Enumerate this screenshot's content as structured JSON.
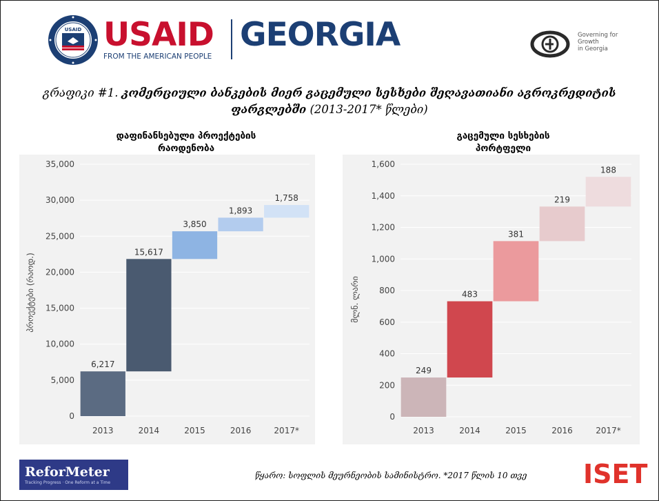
{
  "header": {
    "usaid": "USAID",
    "georgia": "GEORGIA",
    "tagline": "FROM THE AMERICAN PEOPLE",
    "seal_tag": "USAID",
    "governing": [
      "Governing for",
      "Growth",
      "in Georgia"
    ]
  },
  "title": {
    "prefix": "გრაფიკი #1.",
    "bold": "კომერციული ბანკების მიერ გაცემული სესხები შეღავათიანი აგროკრედიტის ფარგლებში",
    "suffix": " (2013-2017* წლები)"
  },
  "chart_data": [
    {
      "type": "bar",
      "subtype": "waterfall",
      "title_lines": [
        "დაფინანსებული პროექტების",
        "რაოდენობა"
      ],
      "ylabel": "პროექტები (რაოდ.)",
      "categories": [
        "2013",
        "2014",
        "2015",
        "2016",
        "2017*"
      ],
      "values": [
        6217,
        15617,
        3850,
        1893,
        1758
      ],
      "value_labels": [
        "6,217",
        "15,617",
        "3,850",
        "1,893",
        "1,758"
      ],
      "ylim": [
        0,
        35000
      ],
      "yticks": [
        0,
        5000,
        10000,
        15000,
        20000,
        25000,
        30000,
        35000
      ],
      "ytick_labels": [
        "0",
        "5,000",
        "10,000",
        "15,000",
        "20,000",
        "25,000",
        "30,000",
        "35,000"
      ],
      "colors": [
        "#5b6b82",
        "#4a5a70",
        "#8eb4e3",
        "#b3ccee",
        "#d2e2f6"
      ],
      "grid": true
    },
    {
      "type": "bar",
      "subtype": "waterfall",
      "title_lines": [
        "გაცემული სესხების",
        "პორტფელი"
      ],
      "ylabel": "მლნ. ლარი",
      "categories": [
        "2013",
        "2014",
        "2015",
        "2016",
        "2017*"
      ],
      "values": [
        249,
        483,
        381,
        219,
        188
      ],
      "value_labels": [
        "249",
        "483",
        "381",
        "219",
        "188"
      ],
      "ylim": [
        0,
        1600
      ],
      "yticks": [
        0,
        200,
        400,
        600,
        800,
        1000,
        1200,
        1400,
        1600
      ],
      "ytick_labels": [
        "0",
        "200",
        "400",
        "600",
        "800",
        "1,000",
        "1,200",
        "1,400",
        "1,600"
      ],
      "colors": [
        "#ccb5b8",
        "#d0474e",
        "#eb9a9d",
        "#e7cbcd",
        "#eedcde"
      ],
      "grid": true
    }
  ],
  "footer": {
    "reformeter": "ReforMeter",
    "reformeter_tag": "Tracking Progress · One Reform at a Time",
    "source": "წყარო: სოფლის მეურნეობის სამინისტრო. *2017 წლის 10 თვე",
    "iset": "ISET"
  }
}
